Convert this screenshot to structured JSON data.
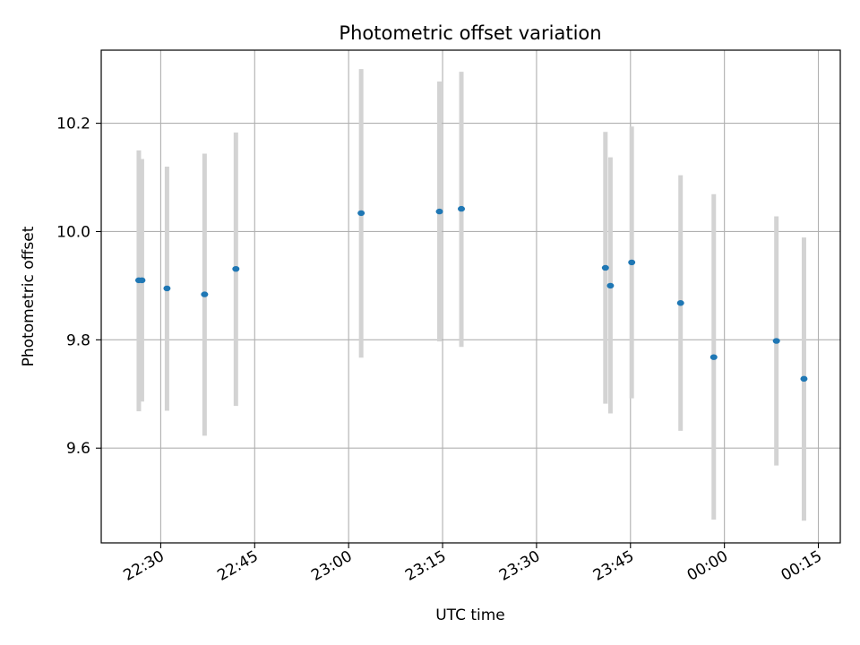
{
  "chart_data": {
    "type": "scatter",
    "title": "Photometric offset variation",
    "xlabel": "UTC time",
    "ylabel": "Photometric offset",
    "x_tick_labels": [
      "22:30",
      "22:45",
      "23:00",
      "23:15",
      "23:30",
      "23:45",
      "00:00",
      "00:15"
    ],
    "x_tick_times": [
      "22:30",
      "22:45",
      "23:00",
      "23:15",
      "23:30",
      "23:45",
      "24:00",
      "24:15"
    ],
    "xlim": [
      "22:20.5",
      "24:18.5"
    ],
    "y_tick_labels": [
      "9.6",
      "9.8",
      "10.0",
      "10.2"
    ],
    "y_ticks": [
      9.6,
      9.8,
      10.0,
      10.2
    ],
    "ylim": [
      9.425,
      10.335
    ],
    "grid": true,
    "colors": {
      "marker": "#1f77b4",
      "errorbar": "#d3d3d3",
      "grid": "#b0b0b0"
    },
    "points": [
      {
        "time": "22:26.5",
        "value": 9.91,
        "err_low": 9.668,
        "err_high": 10.15
      },
      {
        "time": "22:27.0",
        "value": 9.91,
        "err_low": 9.686,
        "err_high": 10.134
      },
      {
        "time": "22:31.0",
        "value": 9.895,
        "err_low": 9.669,
        "err_high": 10.12
      },
      {
        "time": "22:37.0",
        "value": 9.884,
        "err_low": 9.623,
        "err_high": 10.144
      },
      {
        "time": "22:42.0",
        "value": 9.931,
        "err_low": 9.678,
        "err_high": 10.183
      },
      {
        "time": "23:02.0",
        "value": 10.034,
        "err_low": 9.767,
        "err_high": 10.3
      },
      {
        "time": "23:14.5",
        "value": 10.037,
        "err_low": 9.797,
        "err_high": 10.277
      },
      {
        "time": "23:18.0",
        "value": 10.042,
        "err_low": 9.787,
        "err_high": 10.295
      },
      {
        "time": "23:41.0",
        "value": 9.933,
        "err_low": 9.682,
        "err_high": 10.184
      },
      {
        "time": "23:41.8",
        "value": 9.9,
        "err_low": 9.664,
        "err_high": 10.137
      },
      {
        "time": "23:45.2",
        "value": 9.943,
        "err_low": 9.692,
        "err_high": 10.194
      },
      {
        "time": "23:53.0",
        "value": 9.868,
        "err_low": 9.632,
        "err_high": 10.104
      },
      {
        "time": "23:58.3",
        "value": 9.768,
        "err_low": 9.468,
        "err_high": 10.069
      },
      {
        "time": "24:08.3",
        "value": 9.798,
        "err_low": 9.568,
        "err_high": 10.028
      },
      {
        "time": "24:12.7",
        "value": 9.728,
        "err_low": 9.466,
        "err_high": 9.989
      }
    ]
  }
}
